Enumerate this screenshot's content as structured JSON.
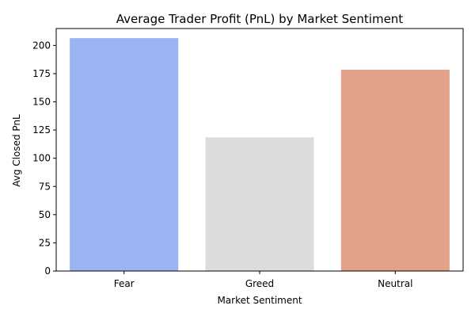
{
  "chart_data": {
    "type": "bar",
    "title": "Average Trader Profit (PnL) by Market Sentiment",
    "xlabel": "Market Sentiment",
    "ylabel": "Avg Closed PnL",
    "categories": [
      "Fear",
      "Greed",
      "Neutral"
    ],
    "values": [
      206.5,
      118.5,
      178.5
    ],
    "colors": [
      "#9ab4f3",
      "#dcdcdc",
      "#e4a18a"
    ],
    "ylim": [
      0,
      215
    ],
    "yticks": [
      0,
      25,
      50,
      75,
      100,
      125,
      150,
      175,
      200
    ],
    "grid": false,
    "legend": "none"
  }
}
